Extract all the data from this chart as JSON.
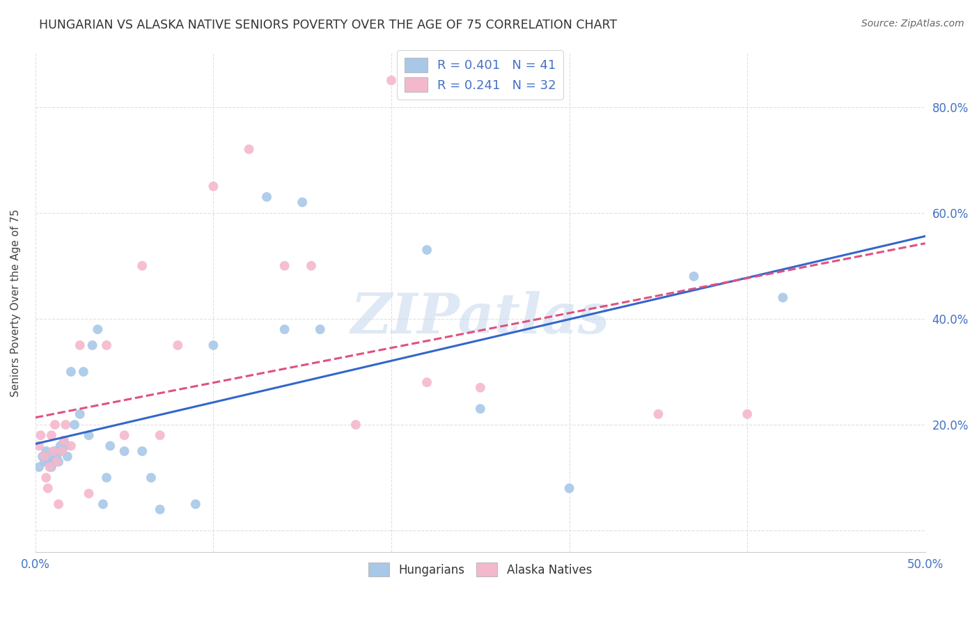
{
  "title": "HUNGARIAN VS ALASKA NATIVE SENIORS POVERTY OVER THE AGE OF 75 CORRELATION CHART",
  "source": "Source: ZipAtlas.com",
  "ylabel": "Seniors Poverty Over the Age of 75",
  "xlim": [
    0.0,
    0.5
  ],
  "ylim": [
    -0.04,
    0.9
  ],
  "hungarian_color": "#a8c8e8",
  "alaska_color": "#f4b8cc",
  "hungarian_R": 0.401,
  "hungarian_N": 41,
  "alaska_R": 0.241,
  "alaska_N": 32,
  "hungarian_x": [
    0.002,
    0.004,
    0.005,
    0.006,
    0.007,
    0.008,
    0.009,
    0.01,
    0.011,
    0.012,
    0.013,
    0.014,
    0.015,
    0.016,
    0.017,
    0.018,
    0.02,
    0.022,
    0.025,
    0.027,
    0.03,
    0.032,
    0.035,
    0.038,
    0.04,
    0.042,
    0.05,
    0.06,
    0.065,
    0.07,
    0.09,
    0.1,
    0.13,
    0.14,
    0.15,
    0.16,
    0.22,
    0.25,
    0.3,
    0.37,
    0.42
  ],
  "hungarian_y": [
    0.12,
    0.14,
    0.13,
    0.15,
    0.13,
    0.14,
    0.12,
    0.13,
    0.15,
    0.14,
    0.13,
    0.16,
    0.15,
    0.17,
    0.16,
    0.14,
    0.3,
    0.2,
    0.22,
    0.3,
    0.18,
    0.35,
    0.38,
    0.05,
    0.1,
    0.16,
    0.15,
    0.15,
    0.1,
    0.04,
    0.05,
    0.35,
    0.63,
    0.38,
    0.62,
    0.38,
    0.53,
    0.23,
    0.08,
    0.48,
    0.44
  ],
  "alaska_x": [
    0.002,
    0.003,
    0.005,
    0.006,
    0.007,
    0.008,
    0.009,
    0.01,
    0.011,
    0.012,
    0.013,
    0.015,
    0.016,
    0.017,
    0.02,
    0.025,
    0.03,
    0.04,
    0.05,
    0.06,
    0.07,
    0.08,
    0.1,
    0.12,
    0.14,
    0.155,
    0.18,
    0.2,
    0.22,
    0.25,
    0.35,
    0.4
  ],
  "alaska_y": [
    0.16,
    0.18,
    0.14,
    0.1,
    0.08,
    0.12,
    0.18,
    0.15,
    0.2,
    0.13,
    0.05,
    0.15,
    0.17,
    0.2,
    0.16,
    0.35,
    0.07,
    0.35,
    0.18,
    0.5,
    0.18,
    0.35,
    0.65,
    0.72,
    0.5,
    0.5,
    0.2,
    0.85,
    0.28,
    0.27,
    0.22,
    0.22
  ],
  "watermark": "ZIPatlas",
  "grid_color": "#e0e0e0",
  "background_color": "#ffffff",
  "legend_color": "#4472c4",
  "title_color": "#333333",
  "source_color": "#666666"
}
